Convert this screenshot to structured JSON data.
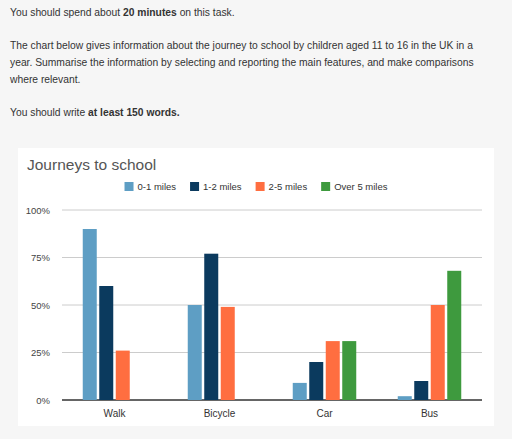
{
  "task": {
    "paragraphs": [
      [
        [
          {
            "text": "You should spend about ",
            "bold": false
          },
          {
            "text": "20 minutes",
            "bold": true
          },
          {
            "text": " on this task.",
            "bold": false
          }
        ]
      ],
      [
        [
          {
            "text": "The chart below gives information about the journey to school by children aged 11 to 16 in the UK in a",
            "bold": false
          }
        ],
        [
          {
            "text": "year. Summarise the information by selecting and reporting the main features, and make comparisons",
            "bold": false
          }
        ],
        [
          {
            "text": "where relevant.",
            "bold": false
          }
        ]
      ],
      [
        [
          {
            "text": "You should write ",
            "bold": false
          },
          {
            "text": "at least 150 words.",
            "bold": true
          }
        ]
      ]
    ]
  },
  "chart_data": {
    "type": "bar",
    "title": "Journeys to school",
    "categories": [
      "Walk",
      "Bicycle",
      "Car",
      "Bus"
    ],
    "series": [
      {
        "name": "0-1 miles",
        "color": "#5e9ec4",
        "values": [
          90,
          50,
          9,
          2
        ]
      },
      {
        "name": "1-2 miles",
        "color": "#0b3a5e",
        "values": [
          60,
          77,
          20,
          10
        ]
      },
      {
        "name": "2-5 miles",
        "color": "#ff6e40",
        "values": [
          26,
          49,
          31,
          50
        ]
      },
      {
        "name": "Over 5 miles",
        "color": "#3e9a3e",
        "values": [
          null,
          null,
          31,
          68
        ]
      }
    ],
    "ylim": [
      0,
      100
    ],
    "yticks": [
      {
        "value": 0,
        "label": "0%"
      },
      {
        "value": 25,
        "label": "25%"
      },
      {
        "value": 50,
        "label": "50%"
      },
      {
        "value": 75,
        "label": "75%"
      },
      {
        "value": 100,
        "label": "100%"
      }
    ],
    "grid": true,
    "legend": "top"
  }
}
